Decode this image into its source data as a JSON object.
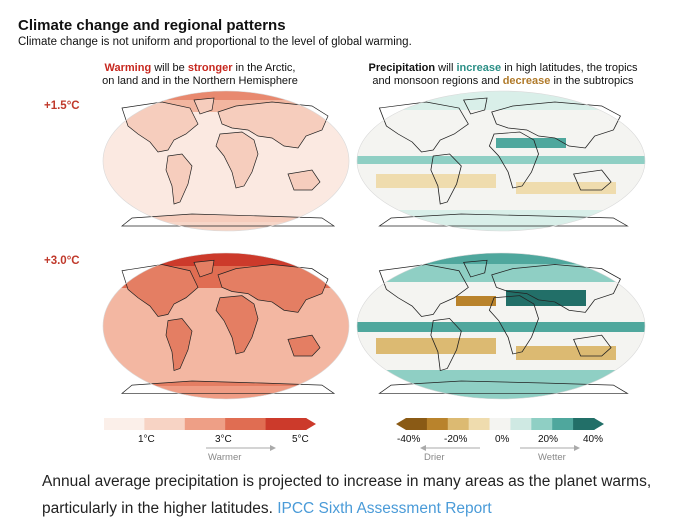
{
  "figure": {
    "title": "Climate change and regional patterns",
    "subtitle": "Climate change is not uniform and proportional to the level of global warming."
  },
  "columns": {
    "warming": {
      "w1": "Warming",
      "w2": " will be ",
      "w3": "stronger",
      "w4": " in the Arctic,",
      "line2": "on land and in the Northern Hemisphere"
    },
    "precip": {
      "p1": "Precipitation",
      "p2": " will ",
      "p3": "increase",
      "p4": " in high latitudes, the tropics",
      "p5": "and monsoon regions and ",
      "p6": "decrease",
      "p7": " in the subtropics"
    }
  },
  "rows": [
    {
      "label": "+1.5°C"
    },
    {
      "label": "+3.0°C"
    }
  ],
  "temp_scale": {
    "ticks": [
      "1°C",
      "3°C",
      "5°C"
    ],
    "direction_label": "Warmer",
    "colors": [
      "#fbefe9",
      "#f7d3c4",
      "#ee9f86",
      "#e06d52",
      "#cc3a2b"
    ]
  },
  "precip_scale": {
    "ticks": [
      "-40%",
      "-20%",
      "0%",
      "20%",
      "40%"
    ],
    "drier_label": "Drier",
    "wetter_label": "Wetter",
    "colors": [
      "#8a5a15",
      "#b9832c",
      "#dcba72",
      "#efdcae",
      "#f4f4f1",
      "#cfe9e3",
      "#8fcfc4",
      "#4fa79d",
      "#226f68"
    ]
  },
  "caption": {
    "text": "Annual average precipitation is projected to increase in many areas as the planet warms, particularly in the higher latitudes. ",
    "link": "IPCC Sixth Assessment Report"
  },
  "colors": {
    "warming_accent": "#c7281f",
    "increase_accent": "#2b8f86",
    "decrease_accent": "#b07a2a",
    "link": "#4a9bd8"
  }
}
